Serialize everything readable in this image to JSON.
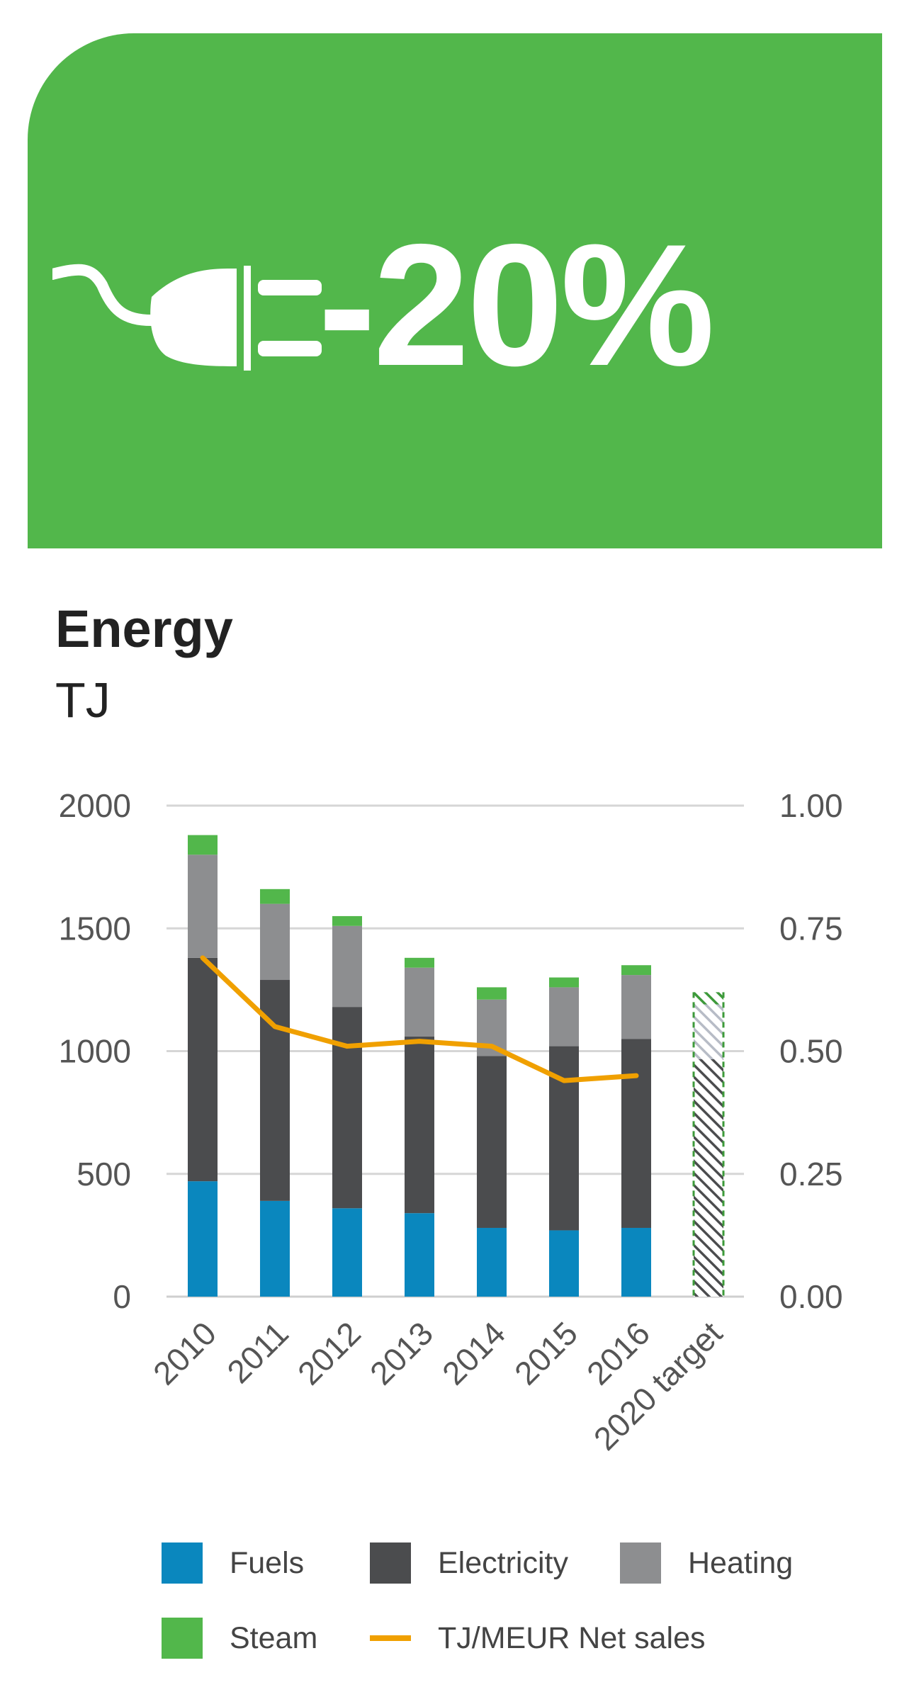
{
  "banner": {
    "value": "-20%",
    "icon": "plug-icon",
    "color": "#52b74b"
  },
  "title": "Energy",
  "unit": "TJ",
  "colors": {
    "fuels": "#0a87be",
    "electricity": "#4b4c4e",
    "heating": "#8d8e90",
    "steam": "#52b74b",
    "line": "#f0a000"
  },
  "chart_data": {
    "type": "bar",
    "stacked": true,
    "categories": [
      "2010",
      "2011",
      "2012",
      "2013",
      "2014",
      "2015",
      "2016",
      "2020 target"
    ],
    "series": [
      {
        "name": "Fuels",
        "values": [
          470,
          390,
          360,
          340,
          280,
          270,
          280,
          null
        ]
      },
      {
        "name": "Electricity",
        "values": [
          910,
          900,
          820,
          720,
          700,
          750,
          770,
          null
        ]
      },
      {
        "name": "Heating",
        "values": [
          420,
          310,
          330,
          280,
          230,
          240,
          260,
          null
        ]
      },
      {
        "name": "Steam",
        "values": [
          80,
          60,
          40,
          40,
          50,
          40,
          40,
          null
        ]
      },
      {
        "name": "TJ/MEUR Net sales",
        "type": "line",
        "axis": "right",
        "values": [
          0.69,
          0.55,
          0.51,
          0.52,
          0.51,
          0.44,
          0.45,
          null
        ]
      }
    ],
    "target": {
      "category": "2020 target",
      "total": 1240,
      "style": "hatched"
    },
    "yticks_left": [
      "2000",
      "1500",
      "1000",
      "500",
      "0"
    ],
    "yticks_right": [
      "1.00",
      "0.75",
      "0.50",
      "0.25",
      "0.00"
    ],
    "ylim": [
      0,
      2000
    ],
    "ylim_right": [
      0,
      1.0
    ],
    "grid": true,
    "legend": "bottom"
  }
}
